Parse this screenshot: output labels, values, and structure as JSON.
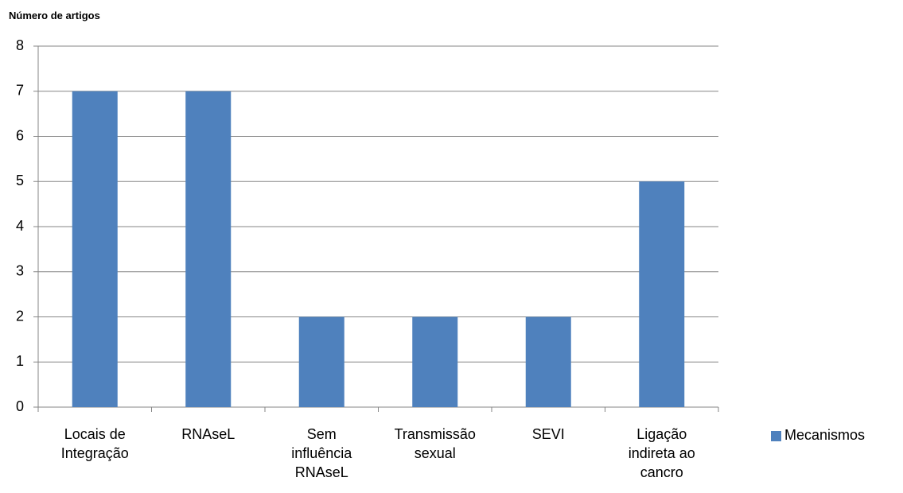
{
  "chart_data": {
    "type": "bar",
    "title": "Número de artigos",
    "categories": [
      "Locais de Integração",
      "RNAseL",
      "Sem influência RNAseL",
      "Transmissão sexual",
      "SEVI",
      "Ligação indireta ao cancro"
    ],
    "series": [
      {
        "name": "Mecanismos",
        "color": "#4f81bd",
        "values": [
          7,
          7,
          2,
          2,
          2,
          5
        ]
      }
    ],
    "ylim": [
      0,
      8
    ],
    "yticks": [
      0,
      1,
      2,
      3,
      4,
      5,
      6,
      7,
      8
    ],
    "grid": true,
    "legend": "right"
  }
}
